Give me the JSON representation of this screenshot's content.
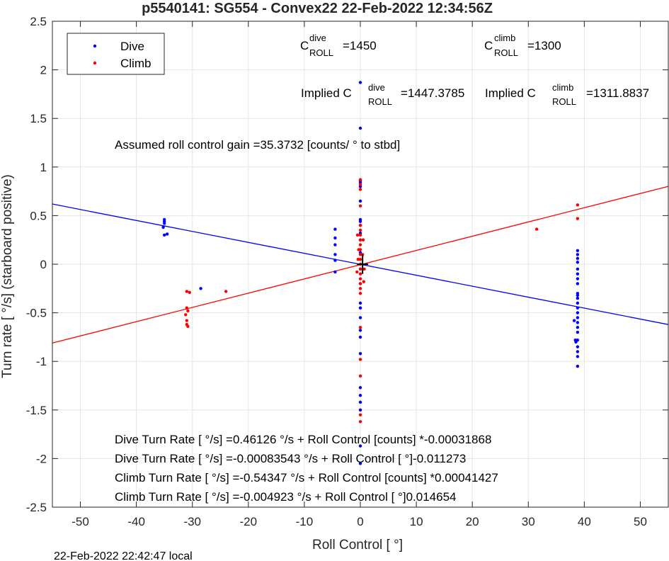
{
  "chart_data": {
    "type": "scatter",
    "title": "p5540141: SG554 - Convex22 22-Feb-2022 12:34:56Z",
    "xlabel": "Roll Control [   °]",
    "ylabel": "Turn rate [   °/s] (starboard positive)",
    "xlim": [
      -55,
      55
    ],
    "ylim": [
      -2.5,
      2.5
    ],
    "xticks": [
      -50,
      -40,
      -30,
      -20,
      -10,
      0,
      10,
      20,
      30,
      40,
      50
    ],
    "yticks": [
      -2.5,
      -2,
      -1.5,
      -1,
      -0.5,
      0,
      0.5,
      1,
      1.5,
      2,
      2.5
    ],
    "grid": true,
    "legend": {
      "position": "top-left",
      "entries": [
        "Dive",
        "Climb"
      ]
    },
    "colors": {
      "dive": "#0000ff",
      "climb": "#ff0000",
      "grid": "#e5e5e5",
      "axis": "#262626"
    },
    "series": [
      {
        "name": "Dive",
        "color": "#0000ff",
        "points": [
          [
            -35,
            0.46
          ],
          [
            -35,
            0.44
          ],
          [
            -35,
            0.42
          ],
          [
            -35.2,
            0.38
          ],
          [
            -35,
            0.3
          ],
          [
            -34.5,
            0.31
          ],
          [
            -28.5,
            -0.25
          ],
          [
            -4.5,
            0.36
          ],
          [
            -4.5,
            0.27
          ],
          [
            -4.5,
            0.2
          ],
          [
            -4.5,
            0.1
          ],
          [
            -4.5,
            0.04
          ],
          [
            -4.5,
            -0.08
          ],
          [
            0,
            1.87
          ],
          [
            0,
            1.4
          ],
          [
            0,
            0.86
          ],
          [
            0,
            0.84
          ],
          [
            0,
            0.8
          ],
          [
            0,
            0.65
          ],
          [
            0,
            0.46
          ],
          [
            0,
            0.44
          ],
          [
            0,
            0.4
          ],
          [
            0,
            0.32
          ],
          [
            0,
            0.25
          ],
          [
            0,
            0.12
          ],
          [
            0,
            -0.05
          ],
          [
            0,
            -0.2
          ],
          [
            0,
            -0.4
          ],
          [
            0,
            -0.45
          ],
          [
            0,
            -0.55
          ],
          [
            0,
            -0.68
          ],
          [
            0,
            -0.75
          ],
          [
            0,
            -0.92
          ],
          [
            0,
            -1.27
          ],
          [
            0,
            -1.35
          ],
          [
            0,
            -1.42
          ],
          [
            0,
            -1.5
          ],
          [
            0,
            -1.87
          ],
          [
            0,
            -2.05
          ],
          [
            38.8,
            0.14
          ],
          [
            38.8,
            0.1
          ],
          [
            38.8,
            0.06
          ],
          [
            38.8,
            0.02
          ],
          [
            38.8,
            -0.05
          ],
          [
            38.8,
            -0.1
          ],
          [
            38.8,
            -0.15
          ],
          [
            38.8,
            -0.2
          ],
          [
            38.8,
            -0.3
          ],
          [
            38.8,
            -0.32
          ],
          [
            38.8,
            -0.35
          ],
          [
            38.8,
            -0.4
          ],
          [
            38.8,
            -0.45
          ],
          [
            38.8,
            -0.5
          ],
          [
            38.8,
            -0.55
          ],
          [
            38.8,
            -0.6
          ],
          [
            38.8,
            -0.65
          ],
          [
            38.8,
            -0.7
          ],
          [
            38.8,
            -0.78
          ],
          [
            38.8,
            -0.85
          ],
          [
            38.8,
            -0.9
          ],
          [
            38.8,
            -0.95
          ],
          [
            38.8,
            -1.05
          ],
          [
            38.2,
            -0.58
          ],
          [
            38.4,
            -0.78
          ],
          [
            38.5,
            -0.8
          ]
        ]
      },
      {
        "name": "Climb",
        "color": "#ff0000",
        "points": [
          [
            -31,
            -0.28
          ],
          [
            -30.5,
            -0.29
          ],
          [
            -31,
            -0.45
          ],
          [
            -30.8,
            -0.48
          ],
          [
            -31.2,
            -0.52
          ],
          [
            -31,
            -0.58
          ],
          [
            -31,
            -0.62
          ],
          [
            -30.8,
            -0.64
          ],
          [
            -24,
            -0.28
          ],
          [
            0,
            0.87
          ],
          [
            0,
            0.82
          ],
          [
            0,
            0.77
          ],
          [
            0,
            0.6
          ],
          [
            0,
            0.4
          ],
          [
            0,
            0.35
          ],
          [
            0,
            0.3
          ],
          [
            0,
            0.25
          ],
          [
            0,
            0.2
          ],
          [
            0,
            0.15
          ],
          [
            0,
            0.1
          ],
          [
            0,
            0.05
          ],
          [
            0,
            0.0
          ],
          [
            0,
            -0.05
          ],
          [
            0,
            -0.1
          ],
          [
            0,
            -0.15
          ],
          [
            0,
            -0.2
          ],
          [
            0,
            -0.25
          ],
          [
            0,
            -0.3
          ],
          [
            0,
            -0.65
          ],
          [
            0,
            -0.98
          ],
          [
            0,
            -1.15
          ],
          [
            0,
            -1.55
          ],
          [
            0,
            -1.62
          ],
          [
            -0.5,
            0.3
          ],
          [
            0.5,
            0.25
          ],
          [
            -0.3,
            0.15
          ],
          [
            0.4,
            0.1
          ],
          [
            0.7,
            -0.05
          ],
          [
            -0.6,
            -0.08
          ],
          [
            0.6,
            -0.18
          ],
          [
            -0.4,
            0.05
          ],
          [
            31.5,
            0.36
          ],
          [
            38.8,
            0.61
          ],
          [
            38.8,
            0.47
          ]
        ]
      }
    ],
    "fit_lines": [
      {
        "name": "Dive fit",
        "color": "#0000ff",
        "slope": -0.011273,
        "intercept": -0.00083543
      },
      {
        "name": "Climb fit",
        "color": "#ff0000",
        "slope": 0.014654,
        "intercept": -0.004923
      }
    ],
    "annotations": {
      "c_dive_main": "C",
      "c_dive_sup": "dive",
      "c_dive_sub": "ROLL",
      "c_dive_val": "=1450",
      "c_climb_main": "C",
      "c_climb_sup": "climb",
      "c_climb_sub": "ROLL",
      "c_climb_val": "=1300",
      "implied_dive_main": "Implied C",
      "implied_dive_sup": "dive",
      "implied_dive_sub": "ROLL",
      "implied_dive_val": "=1447.3785",
      "implied_climb_main": "Implied C",
      "implied_climb_sup": "climb",
      "implied_climb_sub": "ROLL",
      "implied_climb_val": "=1311.8837",
      "gain": "Assumed roll control gain =35.3732 [counts/            ° to stbd]",
      "fit1": "Dive Turn Rate [    °/s] =0.46126    °/s + Roll Control [counts] *-0.00031868",
      "fit2": "Dive Turn Rate [    °/s] =-0.00083543    °/s + Roll Control [     °]-0.011273",
      "fit3": "Climb Turn Rate [    °/s] =-0.54347    °/s + Roll Control [counts] *0.00041427",
      "fit4": "Climb Turn Rate [    °/s] =-0.004923    °/s + Roll Control [     °]0.014654"
    },
    "footer": "22-Feb-2022 22:42:47 local"
  }
}
